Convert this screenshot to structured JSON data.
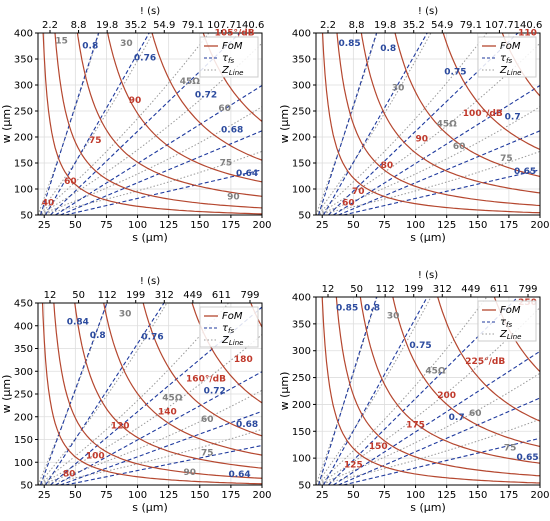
{
  "colors": {
    "fom": "#b5472f",
    "tau": "#1f3a9e",
    "zline": "#9a9a9a",
    "grid": "#dddddd",
    "fom_label": "#c0392b",
    "tau_label": "#2b4a9e",
    "z_label": "#808080"
  },
  "legend": {
    "fom": "FoM",
    "tau_base": "τ",
    "tau_sub": "fs",
    "z_base": "Z",
    "z_sub": "Line"
  },
  "chart_data": [
    {
      "type": "line",
      "xlabel": "s (μm)",
      "ylabel": "w (μm)",
      "top_label": "! ",
      "top_ticks": [
        "2.2",
        "8.8",
        "19.8",
        "35.2",
        "54.9",
        "79.1",
        "107.7",
        "140.6"
      ],
      "xlim": [
        20,
        200
      ],
      "ylim": [
        50,
        400
      ],
      "xticks": [
        25,
        50,
        75,
        100,
        125,
        150,
        175,
        200
      ],
      "yticks": [
        50,
        100,
        150,
        200,
        250,
        300,
        350,
        400
      ],
      "fom_labels": [
        {
          "text": "40",
          "x": 28,
          "y": 68
        },
        {
          "text": "60",
          "x": 46,
          "y": 110
        },
        {
          "text": "75",
          "x": 66,
          "y": 188
        },
        {
          "text": "90",
          "x": 98,
          "y": 265
        },
        {
          "text": "105°/dB",
          "x": 178,
          "y": 395
        }
      ],
      "tau_labels": [
        {
          "text": "0.8",
          "x": 62,
          "y": 370
        },
        {
          "text": "0.76",
          "x": 106,
          "y": 347
        },
        {
          "text": "0.72",
          "x": 155,
          "y": 276
        },
        {
          "text": "0.68",
          "x": 176,
          "y": 209
        },
        {
          "text": "0.64",
          "x": 188,
          "y": 125
        }
      ],
      "z_labels": [
        {
          "text": "15",
          "x": 39,
          "y": 380
        },
        {
          "text": "30",
          "x": 91,
          "y": 375
        },
        {
          "text": "45Ω",
          "x": 142,
          "y": 302
        },
        {
          "text": "60",
          "x": 170,
          "y": 250
        },
        {
          "text": "75",
          "x": 171,
          "y": 145
        },
        {
          "text": "90",
          "x": 177,
          "y": 80
        }
      ]
    },
    {
      "type": "line",
      "xlabel": "s (μm)",
      "ylabel": "w (μm)",
      "top_label": "! ",
      "top_ticks": [
        "2.2",
        "8.8",
        "19.8",
        "35.2",
        "54.9",
        "79.1",
        "107.7",
        "140.6"
      ],
      "xlim": [
        20,
        200
      ],
      "ylim": [
        50,
        400
      ],
      "xticks": [
        25,
        50,
        75,
        100,
        125,
        150,
        175,
        200
      ],
      "yticks": [
        50,
        100,
        150,
        200,
        250,
        300,
        350,
        400
      ],
      "fom_labels": [
        {
          "text": "60",
          "x": 46,
          "y": 68
        },
        {
          "text": "70",
          "x": 54,
          "y": 90
        },
        {
          "text": "80",
          "x": 77,
          "y": 140
        },
        {
          "text": "90",
          "x": 105,
          "y": 191
        },
        {
          "text": "100°/dB",
          "x": 154,
          "y": 240
        }
      ],
      "tau_labels": [
        {
          "text": "0.85",
          "x": 47,
          "y": 375
        },
        {
          "text": "0.8",
          "x": 78,
          "y": 365
        },
        {
          "text": "0.75",
          "x": 132,
          "y": 320
        },
        {
          "text": "0.7",
          "x": 178,
          "y": 234
        },
        {
          "text": "0.65",
          "x": 188,
          "y": 129
        }
      ],
      "z_labels": [
        {
          "text": "30",
          "x": 86,
          "y": 289
        },
        {
          "text": "45Ω",
          "x": 125,
          "y": 220
        },
        {
          "text": "60",
          "x": 135,
          "y": 177
        },
        {
          "text": "75",
          "x": 173,
          "y": 154
        }
      ],
      "fom_label_extra": [
        {
          "text": "110",
          "x": 190,
          "y": 395
        }
      ]
    },
    {
      "type": "line",
      "xlabel": "s (μm)",
      "ylabel": "w (μm)",
      "top_label": "! ",
      "top_ticks": [
        "12",
        "50",
        "112",
        "199",
        "312",
        "449",
        "611",
        "799"
      ],
      "xlim": [
        20,
        200
      ],
      "ylim": [
        50,
        450
      ],
      "xticks": [
        25,
        50,
        75,
        100,
        125,
        150,
        175,
        200
      ],
      "yticks": [
        50,
        100,
        150,
        200,
        250,
        300,
        350,
        400,
        450
      ],
      "fom_labels": [
        {
          "text": "80",
          "x": 45,
          "y": 69
        },
        {
          "text": "100",
          "x": 66,
          "y": 108
        },
        {
          "text": "120",
          "x": 86,
          "y": 174
        },
        {
          "text": "140",
          "x": 124,
          "y": 205
        },
        {
          "text": "160°/dB",
          "x": 155,
          "y": 278
        },
        {
          "text": "180",
          "x": 185,
          "y": 320
        }
      ],
      "tau_labels": [
        {
          "text": "0.84",
          "x": 52,
          "y": 403
        },
        {
          "text": "0.8",
          "x": 68,
          "y": 373
        },
        {
          "text": "0.76",
          "x": 112,
          "y": 370
        },
        {
          "text": "0.72",
          "x": 162,
          "y": 251
        },
        {
          "text": "0.68",
          "x": 188,
          "y": 177
        },
        {
          "text": "0.64",
          "x": 182,
          "y": 68
        }
      ],
      "z_labels": [
        {
          "text": "30",
          "x": 90,
          "y": 420
        },
        {
          "text": "45Ω",
          "x": 128,
          "y": 236
        },
        {
          "text": "60",
          "x": 156,
          "y": 188
        },
        {
          "text": "75",
          "x": 156,
          "y": 115
        },
        {
          "text": "90",
          "x": 142,
          "y": 72
        }
      ]
    },
    {
      "type": "line",
      "xlabel": "s (μm)",
      "ylabel": "w (μm)",
      "top_label": "! ",
      "top_ticks": [
        "12",
        "50",
        "112",
        "199",
        "312",
        "449",
        "611",
        "799"
      ],
      "xlim": [
        20,
        200
      ],
      "ylim": [
        50,
        400
      ],
      "xticks": [
        25,
        50,
        75,
        100,
        125,
        150,
        175,
        200
      ],
      "yticks": [
        50,
        100,
        150,
        200,
        250,
        300,
        350,
        400
      ],
      "fom_labels": [
        {
          "text": "125",
          "x": 50,
          "y": 83
        },
        {
          "text": "150",
          "x": 70,
          "y": 117
        },
        {
          "text": "175",
          "x": 100,
          "y": 157
        },
        {
          "text": "200",
          "x": 125,
          "y": 212
        },
        {
          "text": "225°/dB",
          "x": 156,
          "y": 275
        },
        {
          "text": "250",
          "x": 190,
          "y": 385
        }
      ],
      "tau_labels": [
        {
          "text": "0.85",
          "x": 45,
          "y": 375
        },
        {
          "text": "0.8",
          "x": 65,
          "y": 375
        },
        {
          "text": "0.75",
          "x": 104,
          "y": 305
        },
        {
          "text": "0.7",
          "x": 133,
          "y": 171
        },
        {
          "text": "0.65",
          "x": 190,
          "y": 97
        }
      ],
      "z_labels": [
        {
          "text": "30",
          "x": 82,
          "y": 360
        },
        {
          "text": "45Ω",
          "x": 116,
          "y": 258
        },
        {
          "text": "60",
          "x": 148,
          "y": 178
        },
        {
          "text": "75",
          "x": 176,
          "y": 114
        }
      ]
    }
  ]
}
